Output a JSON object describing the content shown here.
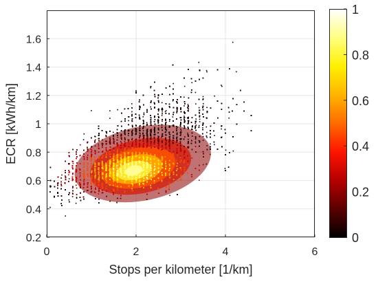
{
  "chart_data": {
    "type": "scatter",
    "subtype": "density-colored scatter",
    "xlabel": "Stops per kilometer [1/km]",
    "ylabel": "ECR [kWh/km]",
    "xlim": [
      0,
      6
    ],
    "ylim": [
      0.2,
      1.8
    ],
    "xticks": [
      0,
      2,
      4,
      6
    ],
    "yticks": [
      0.2,
      0.4,
      0.6,
      0.8,
      1,
      1.2,
      1.4,
      1.6
    ],
    "xtick_labels": [
      "0",
      "2",
      "4",
      "6"
    ],
    "ytick_labels": [
      "0.2",
      "0.4",
      "0.6",
      "0.8",
      "1",
      "1.2",
      "1.4",
      "1.6"
    ],
    "grid": true,
    "colormap": "hot",
    "colorbar": {
      "range": [
        0,
        1
      ],
      "ticks": [
        0,
        0.2,
        0.4,
        0.6,
        0.8,
        1
      ],
      "tick_labels": [
        "0",
        "0.2",
        "0.4",
        "0.6",
        "0.8",
        "1"
      ],
      "stops": [
        "#000000",
        "#5a0000",
        "#b40000",
        "#ff1400",
        "#ff6a00",
        "#ffb400",
        "#fff000",
        "#ffff80",
        "#ffffff"
      ]
    },
    "density_peak": {
      "x": 2.0,
      "y": 0.67
    },
    "cloud_params": {
      "count": 9000,
      "seed": 7,
      "x_range": [
        0.05,
        5.0
      ],
      "y_base": 0.46,
      "slope": 0.115,
      "sigma_low": 0.07,
      "sigma_high": 0.32
    }
  }
}
